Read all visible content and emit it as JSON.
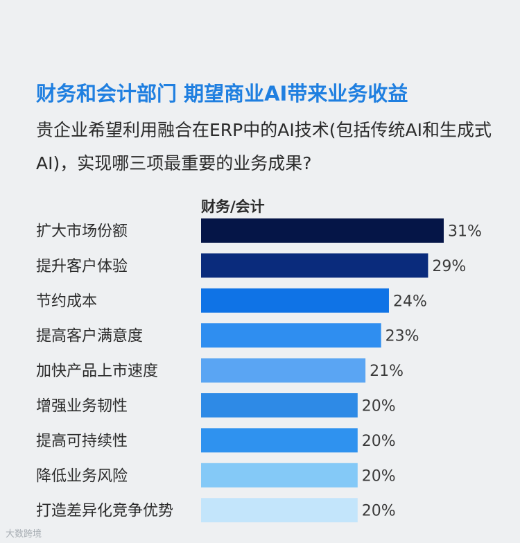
{
  "header": {
    "title": "财务和会计部门 期望商业AI带来业务收益",
    "question": "贵企业希望利用融合在ERP中的AI技术(包括传统AI和生成式AI)，实现哪三项最重要的业务成果?"
  },
  "watermark": "大数跨境",
  "chart_data": {
    "type": "bar",
    "orientation": "horizontal",
    "series_label": "财务/会计",
    "categories": [
      "扩大市场份额",
      "提升客户体验",
      "节约成本",
      "提高客户满意度",
      "加快产品上市速度",
      "增强业务韧性",
      "提高可持续性",
      "降低业务风险",
      "打造差异化竞争优势"
    ],
    "values": [
      31,
      29,
      24,
      23,
      21,
      20,
      20,
      20,
      20
    ],
    "value_labels": [
      "31%",
      "29%",
      "24%",
      "23%",
      "21%",
      "20%",
      "20%",
      "20%",
      "20%"
    ],
    "colors": [
      "#051547",
      "#0a2b7c",
      "#0f73e6",
      "#2f8ef0",
      "#5aa5f3",
      "#2e8ae6",
      "#2f92ef",
      "#84c9f7",
      "#c3e5fb"
    ],
    "grid": false
  }
}
